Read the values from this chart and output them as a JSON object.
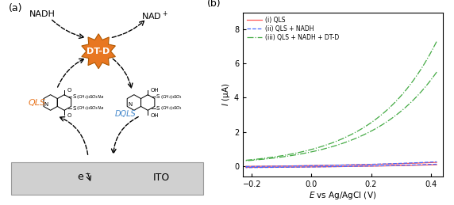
{
  "panel_b": {
    "xlim": [
      -0.23,
      0.44
    ],
    "ylim": [
      -0.6,
      9.0
    ],
    "yticks": [
      0,
      2,
      4,
      6,
      8
    ],
    "xticks": [
      -0.2,
      0.0,
      0.2,
      0.4
    ],
    "color_i": "#ff5555",
    "color_ii": "#4466ff",
    "color_iii": "#44aa44",
    "legend_i": "(i) QLS",
    "legend_ii": "(ii) QLS + NADH",
    "legend_iii": "(iii) QLS + NADH + DT-D",
    "xlabel": "E vs Ag/AgCl (V)",
    "ylabel": "I (μA)"
  },
  "panel_a": {
    "nadh_color": "#000000",
    "nad_color": "#000000",
    "qls_color": "#E87722",
    "dqls_color": "#4488cc",
    "dtd_color": "#E87722",
    "dtd_text": "DT-D",
    "ito_fill": "#d0d0d0"
  }
}
